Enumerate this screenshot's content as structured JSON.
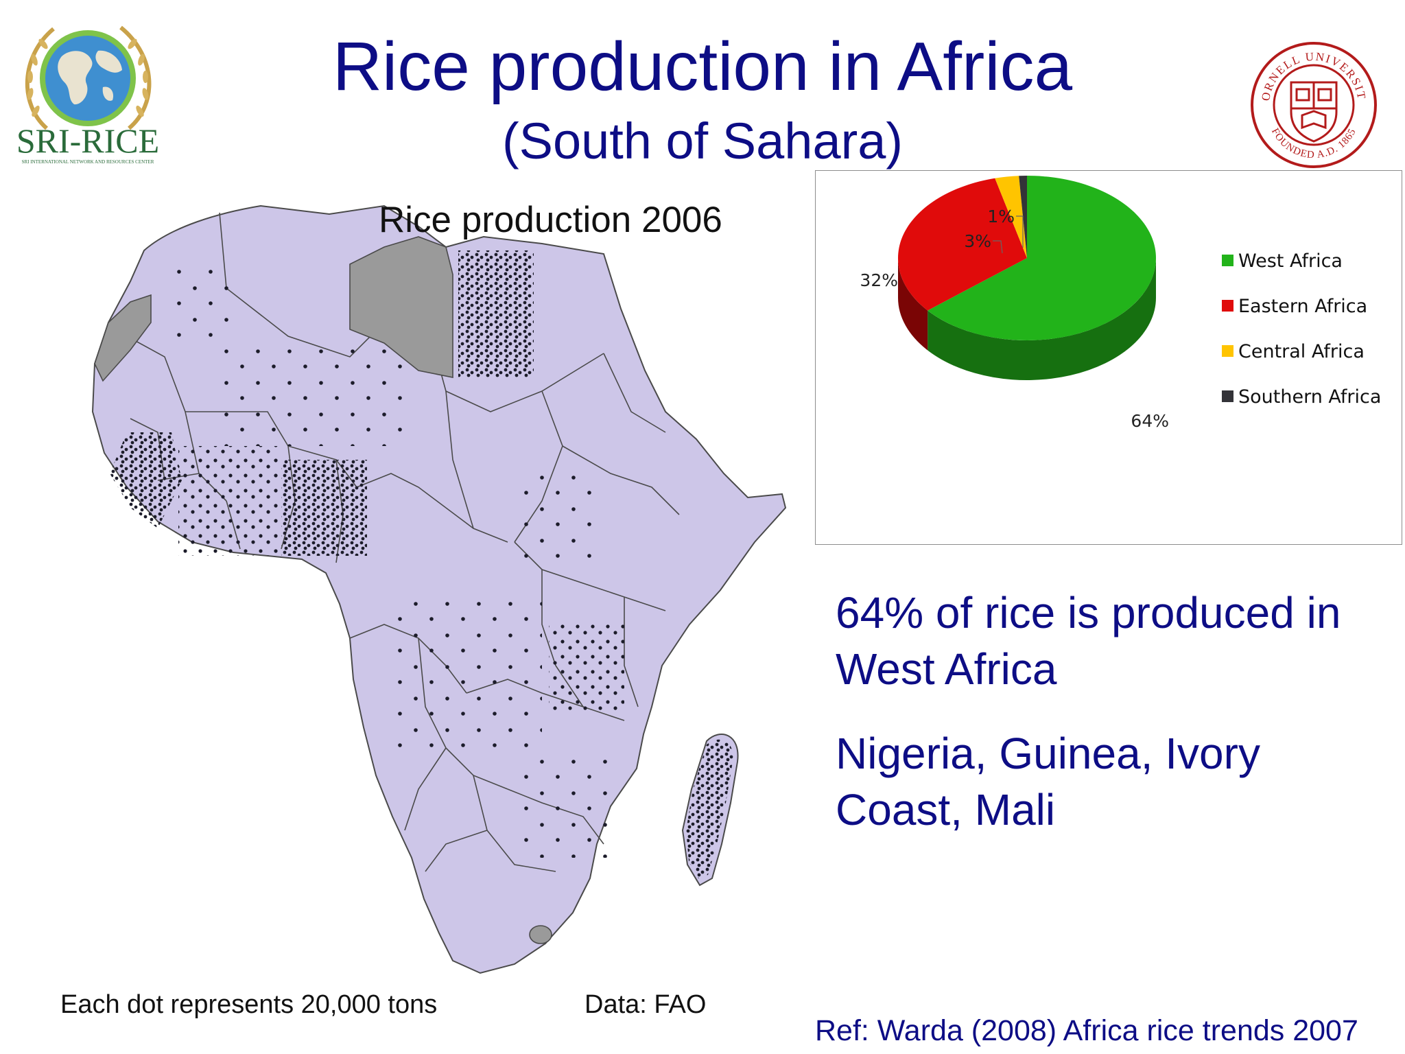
{
  "slide": {
    "title": "Rice production in Africa",
    "subtitle": "(South of Sahara)"
  },
  "logos": {
    "sri_rice": {
      "name": "SRI-RICE",
      "tagline": "SRI INTERNATIONAL NETWORK AND RESOURCES CENTER",
      "colors": {
        "text": "#2a6b3a",
        "globe": "#3f8fd0",
        "wreath": "#c9a24a"
      }
    },
    "cornell": {
      "ring_text": "CORNELL UNIVERSITY",
      "founded_text": "FOUNDED A.D. 1865",
      "color": "#b31b1b"
    }
  },
  "map": {
    "title": "Rice production 2006",
    "dot_note": "Each dot represents 20,000 tons",
    "data_source": "Data: FAO",
    "colors": {
      "land": "#cdc6e8",
      "excluded": "#9a9a9a",
      "dot": "#1c1c2a",
      "border": "#4a4a4a"
    }
  },
  "chart_data": {
    "type": "pie",
    "title": "",
    "series": [
      {
        "name": "West Africa",
        "value": 64,
        "label": "64%",
        "color": "#22b31a",
        "side_color": "#167010"
      },
      {
        "name": "Eastern Africa",
        "value": 32,
        "label": "32%",
        "color": "#e00b0b",
        "side_color": "#7a0505"
      },
      {
        "name": "Central Africa",
        "value": 3,
        "label": "3%",
        "color": "#ffc400",
        "side_color": "#a07b00"
      },
      {
        "name": "Southern Africa",
        "value": 1,
        "label": "1%",
        "color": "#333338",
        "side_color": "#1a1a1e"
      }
    ],
    "legend_placement": "right",
    "style": "3d"
  },
  "notes": [
    "64% of rice is produced in West Africa",
    "Nigeria, Guinea, Ivory Coast, Mali"
  ],
  "reference": "Ref: Warda (2008) Africa rice trends 2007"
}
